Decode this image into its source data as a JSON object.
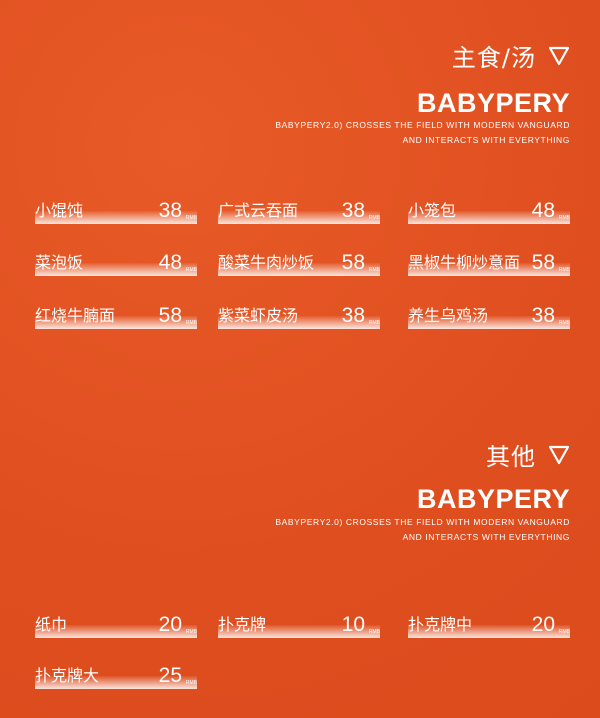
{
  "sections": [
    {
      "title": "主食/汤",
      "brand": "BABYPERY",
      "sub1": "BABYPERY2.0) CROSSES THE FIELD WITH MODERN VANGUARD",
      "sub2": "AND INTERACTS WITH EVERYTHING",
      "items": [
        {
          "name": "小馄饨",
          "price": "38",
          "unit": "RMB"
        },
        {
          "name": "广式云吞面",
          "price": "38",
          "unit": "RMB"
        },
        {
          "name": "小笼包",
          "price": "48",
          "unit": "RMB"
        },
        {
          "name": "菜泡饭",
          "price": "48",
          "unit": "RMB"
        },
        {
          "name": "酸菜牛肉炒饭",
          "price": "58",
          "unit": "RMB"
        },
        {
          "name": "黑椒牛柳炒意面",
          "price": "58",
          "unit": "RMB"
        },
        {
          "name": "红烧牛腩面",
          "price": "58",
          "unit": "RMB"
        },
        {
          "name": "紫菜虾皮汤",
          "price": "38",
          "unit": "RMB"
        },
        {
          "name": "养生乌鸡汤",
          "price": "38",
          "unit": "RMB"
        }
      ]
    },
    {
      "title": "其他",
      "brand": "BABYPERY",
      "sub1": "BABYPERY2.0) CROSSES THE FIELD WITH MODERN VANGUARD",
      "sub2": "AND INTERACTS WITH EVERYTHING",
      "items": [
        {
          "name": "纸巾",
          "price": "20",
          "unit": "RMB"
        },
        {
          "name": "扑克牌",
          "price": "10",
          "unit": "RMB"
        },
        {
          "name": "扑克牌中",
          "price": "20",
          "unit": "RMB"
        },
        {
          "name": "扑克牌大",
          "price": "25",
          "unit": "RMB"
        }
      ]
    }
  ],
  "colors": {
    "background": "#e04f20",
    "text": "#ffffff"
  }
}
